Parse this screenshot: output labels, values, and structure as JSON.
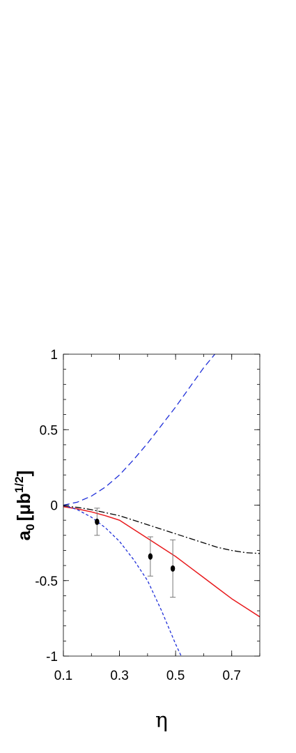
{
  "chart_data": {
    "type": "line",
    "title": "",
    "xlabel": "η",
    "ylabel": "a",
    "ylabel_subscript": "0",
    "ylabel_units": "[μb",
    "ylabel_units_superscript": "1/2",
    "ylabel_units_close": "]",
    "xlim": [
      0.1,
      0.8
    ],
    "ylim": [
      -1,
      1
    ],
    "xticks": [
      0.1,
      0.3,
      0.5,
      0.7
    ],
    "xtick_labels": [
      "0.1",
      "0.3",
      "0.5",
      "0.7"
    ],
    "yticks": [
      -1,
      -0.5,
      0,
      0.5,
      1
    ],
    "ytick_labels": [
      "-1",
      "-0.5",
      "0",
      "0.5",
      "1"
    ],
    "grid": false,
    "legend": "none",
    "series": [
      {
        "style": "solid",
        "color": "#e8191c",
        "x": [
          0.1,
          0.15,
          0.2,
          0.25,
          0.3,
          0.35,
          0.4,
          0.45,
          0.5,
          0.55,
          0.6,
          0.65,
          0.7,
          0.75,
          0.8
        ],
        "y": [
          -0.01,
          -0.025,
          -0.045,
          -0.07,
          -0.1,
          -0.16,
          -0.22,
          -0.28,
          -0.34,
          -0.41,
          -0.48,
          -0.55,
          -0.62,
          -0.68,
          -0.74
        ]
      },
      {
        "style": "dashdot",
        "color": "#000000",
        "x": [
          0.1,
          0.15,
          0.2,
          0.25,
          0.3,
          0.35,
          0.4,
          0.45,
          0.5,
          0.55,
          0.6,
          0.65,
          0.7,
          0.75,
          0.8
        ],
        "y": [
          -0.005,
          -0.015,
          -0.03,
          -0.05,
          -0.07,
          -0.1,
          -0.13,
          -0.16,
          -0.19,
          -0.22,
          -0.25,
          -0.28,
          -0.3,
          -0.315,
          -0.32
        ]
      },
      {
        "style": "longdash",
        "color": "#1f2fd9",
        "x": [
          0.1,
          0.15,
          0.2,
          0.25,
          0.3,
          0.35,
          0.4,
          0.45,
          0.5,
          0.55,
          0.6,
          0.64
        ],
        "y": [
          0.0,
          0.02,
          0.06,
          0.12,
          0.2,
          0.3,
          0.41,
          0.53,
          0.65,
          0.78,
          0.91,
          1.0
        ]
      },
      {
        "style": "shortdash",
        "color": "#1f2fd9",
        "x": [
          0.1,
          0.15,
          0.2,
          0.25,
          0.3,
          0.35,
          0.4,
          0.45,
          0.5,
          0.52
        ],
        "y": [
          0.0,
          -0.03,
          -0.08,
          -0.15,
          -0.24,
          -0.36,
          -0.5,
          -0.7,
          -0.92,
          -1.0
        ]
      }
    ],
    "points": [
      {
        "x": 0.22,
        "y": -0.11,
        "err_low": 0.09,
        "err_high": 0.09
      },
      {
        "x": 0.41,
        "y": -0.34,
        "err_low": 0.13,
        "err_high": 0.13
      },
      {
        "x": 0.49,
        "y": -0.42,
        "err_low": 0.19,
        "err_high": 0.19
      }
    ]
  }
}
